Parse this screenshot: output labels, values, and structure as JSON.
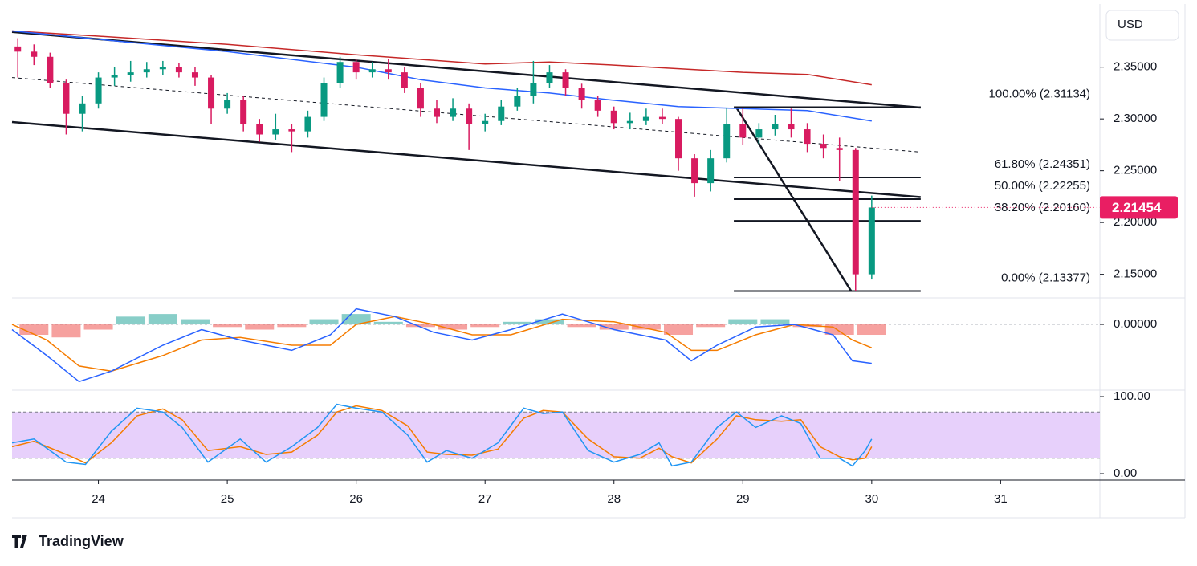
{
  "currency": "USD",
  "brand": "TradingView",
  "chart_data": [
    {
      "type": "candlestick",
      "xlim": [
        23.33,
        31.77
      ],
      "ylim": [
        2.128,
        2.411
      ],
      "xticks": [
        24,
        25,
        26,
        27,
        28,
        29,
        30,
        31
      ],
      "yticks": [
        {
          "value": 2.15,
          "label": "2.15000"
        },
        {
          "value": 2.2,
          "label": "2.20000"
        },
        {
          "value": 2.25,
          "label": "2.25000"
        },
        {
          "value": 2.3,
          "label": "2.30000"
        },
        {
          "value": 2.35,
          "label": "2.35000"
        }
      ],
      "up_color": "#089981",
      "down_color": "#d81b60",
      "x": [
        23.375,
        23.5,
        23.625,
        23.75,
        23.875,
        24.0,
        24.125,
        24.25,
        24.375,
        24.5,
        24.625,
        24.75,
        24.875,
        25.0,
        25.125,
        25.25,
        25.375,
        25.5,
        25.625,
        25.75,
        25.875,
        26.0,
        26.125,
        26.25,
        26.375,
        26.5,
        26.625,
        26.75,
        26.875,
        27.0,
        27.125,
        27.25,
        27.375,
        27.5,
        27.625,
        27.75,
        27.875,
        28.0,
        28.125,
        28.25,
        28.375,
        28.5,
        28.625,
        28.75,
        28.875,
        29.0,
        29.125,
        29.25,
        29.375,
        29.5,
        29.625,
        29.75,
        29.875,
        30.0
      ],
      "open": [
        2.37,
        2.365,
        2.36,
        2.335,
        2.305,
        2.315,
        2.34,
        2.342,
        2.345,
        2.348,
        2.35,
        2.345,
        2.34,
        2.31,
        2.318,
        2.295,
        2.285,
        2.29,
        2.288,
        2.302,
        2.335,
        2.355,
        2.345,
        2.348,
        2.345,
        2.33,
        2.31,
        2.302,
        2.31,
        2.295,
        2.298,
        2.312,
        2.322,
        2.335,
        2.345,
        2.33,
        2.318,
        2.308,
        2.296,
        2.298,
        2.302,
        2.3,
        2.262,
        2.238,
        2.262,
        2.295,
        2.282,
        2.29,
        2.295,
        2.29,
        2.276,
        2.272,
        2.27,
        2.15
      ],
      "high": [
        2.378,
        2.372,
        2.364,
        2.338,
        2.322,
        2.345,
        2.35,
        2.356,
        2.355,
        2.356,
        2.354,
        2.35,
        2.342,
        2.325,
        2.322,
        2.3,
        2.305,
        2.295,
        2.308,
        2.34,
        2.36,
        2.358,
        2.355,
        2.358,
        2.35,
        2.335,
        2.318,
        2.32,
        2.315,
        2.305,
        2.318,
        2.33,
        2.356,
        2.352,
        2.348,
        2.334,
        2.322,
        2.312,
        2.306,
        2.31,
        2.31,
        2.302,
        2.266,
        2.27,
        2.311,
        2.311,
        2.296,
        2.304,
        2.31,
        2.296,
        2.285,
        2.282,
        2.272,
        2.226
      ],
      "low": [
        2.34,
        2.352,
        2.33,
        2.285,
        2.288,
        2.31,
        2.332,
        2.336,
        2.34,
        2.342,
        2.34,
        2.332,
        2.295,
        2.305,
        2.288,
        2.278,
        2.28,
        2.268,
        2.282,
        2.298,
        2.33,
        2.338,
        2.34,
        2.338,
        2.325,
        2.302,
        2.296,
        2.298,
        2.27,
        2.288,
        2.294,
        2.308,
        2.315,
        2.33,
        2.322,
        2.31,
        2.302,
        2.29,
        2.29,
        2.294,
        2.295,
        2.25,
        2.225,
        2.23,
        2.258,
        2.275,
        2.276,
        2.284,
        2.282,
        2.268,
        2.262,
        2.24,
        2.134,
        2.145
      ],
      "close": [
        2.365,
        2.36,
        2.335,
        2.305,
        2.315,
        2.34,
        2.342,
        2.345,
        2.348,
        2.35,
        2.345,
        2.34,
        2.31,
        2.318,
        2.295,
        2.285,
        2.29,
        2.288,
        2.302,
        2.335,
        2.355,
        2.345,
        2.348,
        2.345,
        2.33,
        2.31,
        2.302,
        2.31,
        2.295,
        2.298,
        2.312,
        2.322,
        2.335,
        2.345,
        2.33,
        2.318,
        2.308,
        2.296,
        2.298,
        2.302,
        2.3,
        2.262,
        2.238,
        2.262,
        2.295,
        2.282,
        2.29,
        2.295,
        2.29,
        2.276,
        2.272,
        2.27,
        2.15,
        2.2145
      ],
      "moving_averages": [
        {
          "color": "#c62828",
          "x": [
            23.33,
            24,
            25,
            26,
            27,
            27.5,
            28,
            29,
            29.5,
            30
          ],
          "values": [
            2.385,
            2.38,
            2.372,
            2.362,
            2.353,
            2.355,
            2.352,
            2.345,
            2.343,
            2.333
          ]
        },
        {
          "color": "#2962ff",
          "x": [
            23.33,
            24,
            25,
            26,
            26.5,
            27,
            27.5,
            28,
            28.5,
            29,
            29.5,
            30
          ],
          "values": [
            2.385,
            2.377,
            2.365,
            2.35,
            2.338,
            2.33,
            2.325,
            2.318,
            2.312,
            2.31,
            2.308,
            2.298
          ]
        }
      ],
      "trendlines": [
        {
          "style": "solid",
          "x": [
            23.33,
            30.38
          ],
          "values": [
            2.384,
            2.311
          ]
        },
        {
          "style": "solid",
          "x": [
            23.33,
            30.38
          ],
          "values": [
            2.297,
            2.2245
          ]
        },
        {
          "style": "dashed",
          "x": [
            23.33,
            30.38
          ],
          "values": [
            2.34,
            2.268
          ]
        },
        {
          "style": "solid",
          "x": [
            28.95,
            29.84
          ],
          "values": [
            2.311,
            2.134
          ]
        }
      ],
      "fib_x": [
        28.93,
        30.38
      ],
      "fib_levels": [
        {
          "value": 2.31134,
          "label": "100.00% (2.31134)"
        },
        {
          "value": 2.24351,
          "label": "61.80% (2.24351)"
        },
        {
          "value": 2.22255,
          "label": "50.00% (2.22255)"
        },
        {
          "value": 2.2016,
          "label": "38.20% (2.20160)"
        },
        {
          "value": 2.13377,
          "label": "0.00% (2.13377)"
        }
      ],
      "current_price": 2.21454,
      "current_price_color": "#e91e63"
    },
    {
      "type": "macd",
      "ylim": [
        -0.025,
        0.0099
      ],
      "yticks": [
        {
          "value": 0,
          "label": "0.00000"
        }
      ],
      "x": [
        23.33,
        23.6,
        23.85,
        24.1,
        24.5,
        24.8,
        25.1,
        25.5,
        25.8,
        26.0,
        26.3,
        26.6,
        26.9,
        27.2,
        27.6,
        28.0,
        28.4,
        28.6,
        28.8,
        29.1,
        29.4,
        29.7,
        29.85,
        30.0
      ],
      "macd": [
        -0.002,
        -0.012,
        -0.022,
        -0.018,
        -0.008,
        -0.002,
        -0.006,
        -0.01,
        -0.004,
        0.006,
        0.003,
        -0.003,
        -0.006,
        -0.002,
        0.004,
        -0.002,
        -0.006,
        -0.014,
        -0.008,
        -0.001,
        0.0,
        -0.004,
        -0.014,
        -0.015
      ],
      "signal": [
        0.0,
        -0.006,
        -0.016,
        -0.018,
        -0.012,
        -0.006,
        -0.005,
        -0.008,
        -0.008,
        0.0,
        0.003,
        0.0,
        -0.004,
        -0.004,
        0.002,
        0.001,
        -0.003,
        -0.01,
        -0.01,
        -0.004,
        0.0,
        -0.001,
        -0.006,
        -0.009
      ],
      "macd_color": "#2962ff",
      "signal_color": "#f57c00",
      "hist_x": [
        23.5,
        23.75,
        24.0,
        24.25,
        24.5,
        24.75,
        25.0,
        25.25,
        25.5,
        25.75,
        26.0,
        26.25,
        26.5,
        26.75,
        27.0,
        27.25,
        27.5,
        27.75,
        28.0,
        28.25,
        28.5,
        28.75,
        29.0,
        29.25,
        29.5,
        29.75,
        30.0
      ],
      "histogram": [
        -0.004,
        -0.005,
        -0.002,
        0.003,
        0.004,
        0.002,
        -0.001,
        -0.002,
        -0.001,
        0.002,
        0.004,
        0.001,
        -0.001,
        -0.002,
        -0.001,
        0.001,
        0.002,
        -0.001,
        -0.002,
        -0.002,
        -0.004,
        -0.001,
        0.002,
        0.002,
        -0.001,
        -0.004,
        -0.004
      ],
      "hist_up_color": "#26a69a",
      "hist_down_color": "#ef5350"
    },
    {
      "type": "stochastic",
      "ylim": [
        -7.3,
        107.3
      ],
      "yticks": [
        {
          "value": 0,
          "label": "0.00"
        },
        {
          "value": 100,
          "label": "100.00"
        }
      ],
      "band": [
        20,
        80
      ],
      "band_color": "#e7d0fb",
      "x": [
        23.33,
        23.5,
        23.75,
        23.9,
        24.1,
        24.3,
        24.5,
        24.65,
        24.85,
        25.1,
        25.3,
        25.5,
        25.7,
        25.85,
        26.0,
        26.2,
        26.4,
        26.55,
        26.7,
        26.9,
        27.1,
        27.3,
        27.45,
        27.6,
        27.8,
        28.0,
        28.2,
        28.35,
        28.45,
        28.6,
        28.8,
        28.95,
        29.1,
        29.3,
        29.45,
        29.6,
        29.75,
        29.85,
        29.95,
        30.0
      ],
      "k": [
        40,
        45,
        15,
        12,
        55,
        85,
        80,
        60,
        15,
        45,
        15,
        35,
        60,
        90,
        85,
        80,
        50,
        15,
        30,
        20,
        40,
        85,
        78,
        80,
        30,
        15,
        25,
        40,
        10,
        15,
        60,
        80,
        60,
        75,
        65,
        20,
        20,
        10,
        30,
        45
      ],
      "d": [
        35,
        42,
        25,
        14,
        40,
        75,
        84,
        70,
        30,
        35,
        25,
        28,
        50,
        80,
        88,
        82,
        62,
        28,
        25,
        24,
        32,
        72,
        82,
        80,
        45,
        22,
        20,
        33,
        22,
        14,
        45,
        75,
        70,
        68,
        70,
        35,
        22,
        18,
        20,
        35
      ],
      "k_color": "#2196f3",
      "d_color": "#f57c00"
    }
  ]
}
